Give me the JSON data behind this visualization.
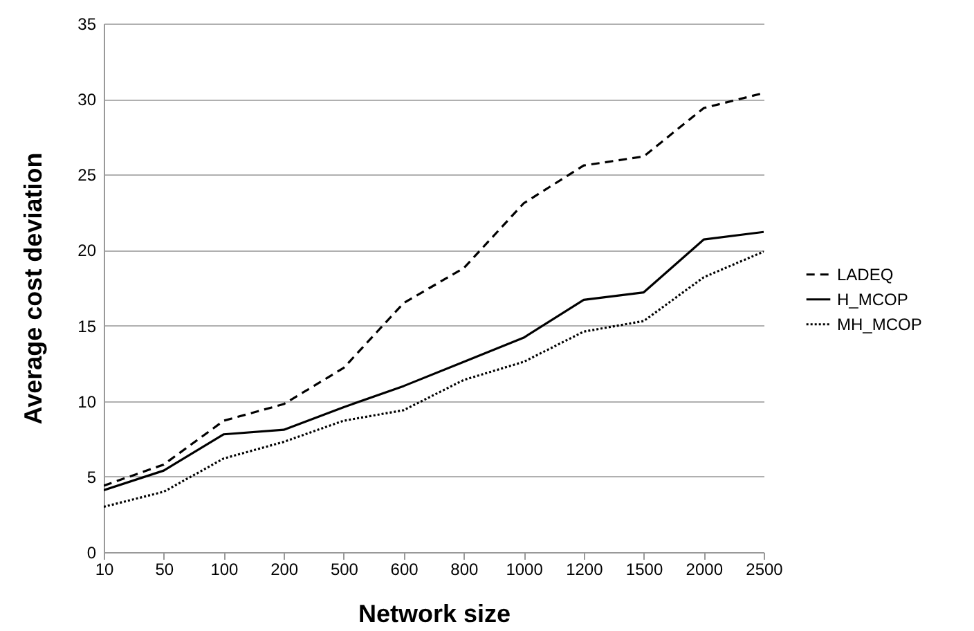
{
  "chart_data": {
    "type": "line",
    "xlabel": "Network size",
    "ylabel": "Average cost deviation",
    "categories": [
      "10",
      "50",
      "100",
      "200",
      "500",
      "600",
      "800",
      "1000",
      "1200",
      "1500",
      "2000",
      "2500"
    ],
    "series": [
      {
        "name": "LADEQ",
        "color": "#000000",
        "line_style": "dashed",
        "values": [
          4.4,
          5.8,
          8.7,
          9.8,
          12.2,
          16.5,
          18.8,
          23.1,
          25.6,
          26.2,
          29.4,
          30.4
        ]
      },
      {
        "name": "H_MCOP",
        "color": "#000000",
        "line_style": "solid",
        "values": [
          4.1,
          5.4,
          7.8,
          8.1,
          9.6,
          11.0,
          12.6,
          14.2,
          16.7,
          17.2,
          20.7,
          21.2
        ]
      },
      {
        "name": "MH_MCOP",
        "color": "#000000",
        "line_style": "dotted",
        "values": [
          3.0,
          4.0,
          6.2,
          7.3,
          8.7,
          9.4,
          11.4,
          12.6,
          14.6,
          15.3,
          18.2,
          19.9
        ]
      }
    ],
    "ylim": [
      0,
      35
    ],
    "yticks": [
      0,
      5,
      10,
      15,
      20,
      25,
      30,
      35
    ],
    "grid": "y",
    "legend": "right",
    "marker": "none"
  }
}
